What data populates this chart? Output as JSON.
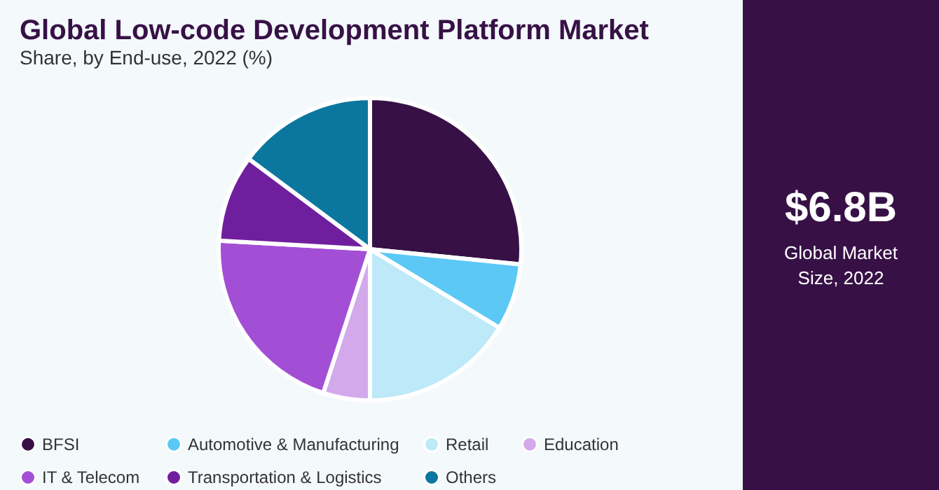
{
  "chart_data": [
    {
      "type": "pie",
      "title": "Global Low-code Development Platform Market",
      "subtitle": "Share, by End-use, 2022 (%)",
      "categories": [
        "BFSI",
        "Automotive & Manufacturing",
        "Retail",
        "Education",
        "IT & Telecom",
        "Transportation & Logistics",
        "Others"
      ],
      "values": [
        26.6,
        7.1,
        16.3,
        5.0,
        20.9,
        9.3,
        14.8
      ],
      "colors": [
        "#371146",
        "#5bc8f5",
        "#bde9f8",
        "#d4a9ec",
        "#a24fd6",
        "#6f1f9e",
        "#0b779f"
      ],
      "legend": "bottom"
    },
    {
      "type": "other",
      "title": "$6.8B",
      "annotations": [
        "Global Market Size, 2022"
      ]
    }
  ]
}
